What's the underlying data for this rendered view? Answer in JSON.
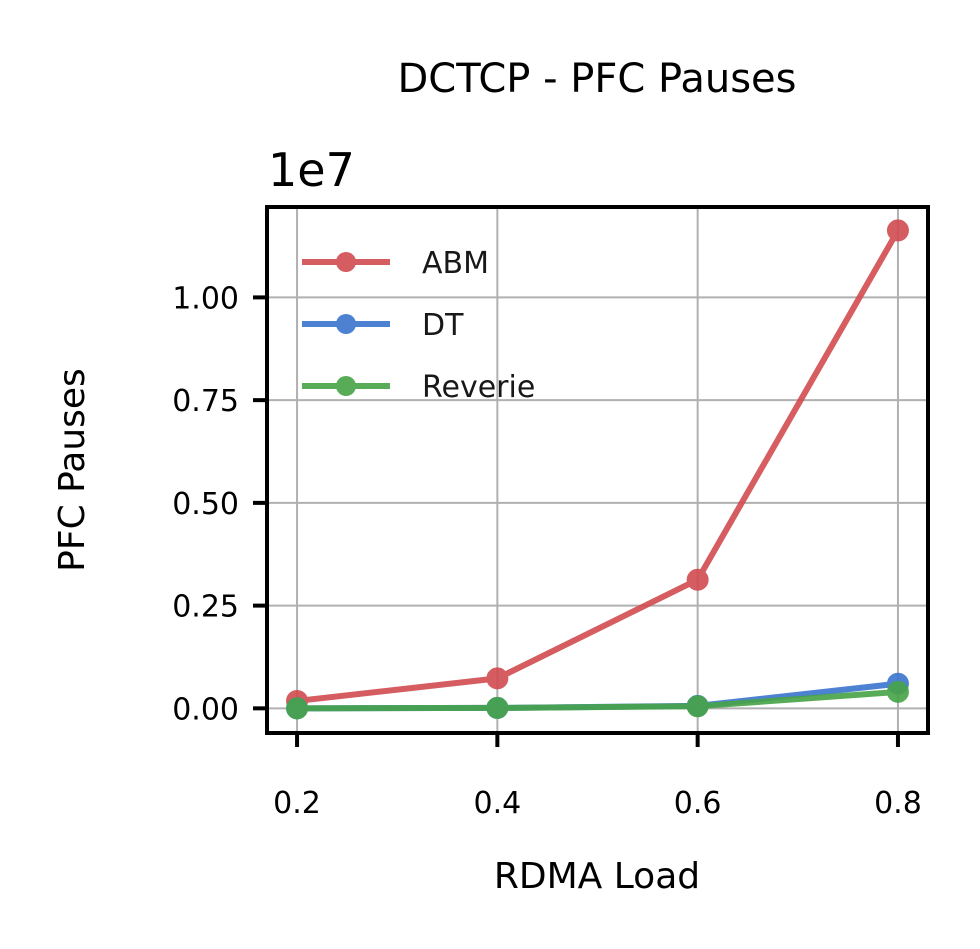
{
  "chart_data": {
    "type": "line",
    "title": "DCTCP - PFC Pauses",
    "xlabel": "RDMA Load",
    "ylabel": "PFC Pauses",
    "y_multiplier": "1e7",
    "x": [
      0.2,
      0.4,
      0.6,
      0.8
    ],
    "x_tick_labels": [
      "0.2",
      "0.4",
      "0.6",
      "0.8"
    ],
    "y_ticks": [
      0,
      2500000,
      5000000,
      7500000,
      10000000
    ],
    "y_tick_labels": [
      "0.00",
      "0.25",
      "0.50",
      "0.75",
      "1.00"
    ],
    "xlim": [
      0.17,
      0.83
    ],
    "ylim": [
      -600000,
      12200000
    ],
    "grid": true,
    "legend_position": "top-left",
    "series": [
      {
        "name": "ABM",
        "color": "#d14b4f",
        "values": [
          180000,
          730000,
          3130000,
          11630000
        ]
      },
      {
        "name": "DT",
        "color": "#3a75cf",
        "values": [
          0,
          10000,
          60000,
          600000
        ]
      },
      {
        "name": "Reverie",
        "color": "#47a447",
        "values": [
          0,
          10000,
          50000,
          400000
        ]
      }
    ]
  }
}
